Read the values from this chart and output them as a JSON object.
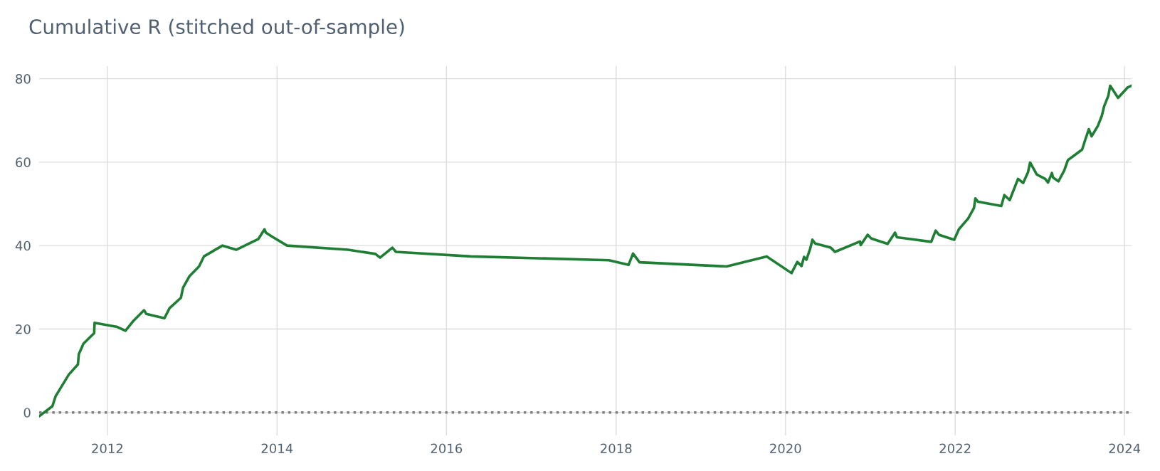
{
  "chart_data": {
    "type": "line",
    "title": "Cumulative R (stitched out-of-sample)",
    "x": [
      "2011-03-13",
      "2011-05-09",
      "2011-05-23",
      "2011-07-19",
      "2011-08-27",
      "2011-08-31",
      "2011-09-20",
      "2011-11-05",
      "2011-11-07",
      "2012-02-13",
      "2012-03-19",
      "2012-04-23",
      "2012-06-07",
      "2012-06-17",
      "2012-09-03",
      "2012-09-25",
      "2012-11-13",
      "2012-11-22",
      "2012-12-19",
      "2013-01-30",
      "2013-02-20",
      "2013-05-11",
      "2013-07-09",
      "2013-10-13",
      "2013-11-08",
      "2013-11-14",
      "2013-12-09",
      "2014-02-13",
      "2014-11-03",
      "2015-03-01",
      "2015-03-21",
      "2015-05-13",
      "2015-05-28",
      "2016-04-15",
      "2017-12-01",
      "2018-02-24",
      "2018-03-15",
      "2018-04-12",
      "2019-04-22",
      "2019-10-12",
      "2020-01-27",
      "2020-02-21",
      "2020-03-10",
      "2020-03-21",
      "2020-03-31",
      "2020-04-16",
      "2020-04-26",
      "2020-05-08",
      "2020-07-14",
      "2020-08-01",
      "2020-11-17",
      "2020-11-20",
      "2020-12-20",
      "2021-01-05",
      "2021-03-16",
      "2021-04-17",
      "2021-04-25",
      "2021-09-20",
      "2021-10-09",
      "2021-10-23",
      "2021-12-28",
      "2022-01-17",
      "2022-02-26",
      "2022-03-23",
      "2022-03-29",
      "2022-04-10",
      "2022-07-19",
      "2022-08-01",
      "2022-08-24",
      "2022-09-29",
      "2022-10-21",
      "2022-11-11",
      "2022-11-20",
      "2022-12-19",
      "2023-01-24",
      "2023-02-05",
      "2023-02-22",
      "2023-02-27",
      "2023-03-22",
      "2023-04-16",
      "2023-05-02",
      "2023-07-02",
      "2023-07-17",
      "2023-07-31",
      "2023-08-12",
      "2023-09-08",
      "2023-09-25",
      "2023-10-05",
      "2023-10-23",
      "2023-10-31",
      "2023-12-04",
      "2024-01-14",
      "2024-01-31"
    ],
    "series": [
      {
        "color": "#1e7e34",
        "values": [
          -0.9,
          1.5,
          3.9,
          9.1,
          11.5,
          14.0,
          16.5,
          19.0,
          21.5,
          20.5,
          19.6,
          22.0,
          24.5,
          23.6,
          22.6,
          25.0,
          27.5,
          29.9,
          32.6,
          35.0,
          37.4,
          40.0,
          39.0,
          41.6,
          43.9,
          43.1,
          42.2,
          40.0,
          39.0,
          38.0,
          37.1,
          39.5,
          38.5,
          37.4,
          36.5,
          35.4,
          38.1,
          36.0,
          35.0,
          37.4,
          33.4,
          36.1,
          35.1,
          37.3,
          36.6,
          39.2,
          41.4,
          40.5,
          39.5,
          38.5,
          41.0,
          40.1,
          42.6,
          41.7,
          40.4,
          43.1,
          42.0,
          40.9,
          43.6,
          42.6,
          41.4,
          43.9,
          46.5,
          49.0,
          51.3,
          50.5,
          49.5,
          52.1,
          50.9,
          56.0,
          55.0,
          57.6,
          59.9,
          57.0,
          56.0,
          55.1,
          57.4,
          56.3,
          55.4,
          58.0,
          60.5,
          63.0,
          65.6,
          67.9,
          66.2,
          68.7,
          71.1,
          73.4,
          75.9,
          78.3,
          75.4,
          77.9,
          78.3
        ]
      }
    ],
    "xlim": [
      "2011-03-13",
      "2024-01-31"
    ],
    "xticks": [
      "2012",
      "2014",
      "2016",
      "2018",
      "2020",
      "2022",
      "2024"
    ],
    "ylim": [
      -5.5,
      83
    ],
    "yticks": [
      0,
      20,
      40,
      60,
      80
    ],
    "ref_lines": [
      {
        "axis": "y",
        "value": 0,
        "color": "#808080",
        "line_style": "dotted"
      }
    ],
    "grid": true,
    "legend": false,
    "marker": "none",
    "line_style": "solid"
  }
}
